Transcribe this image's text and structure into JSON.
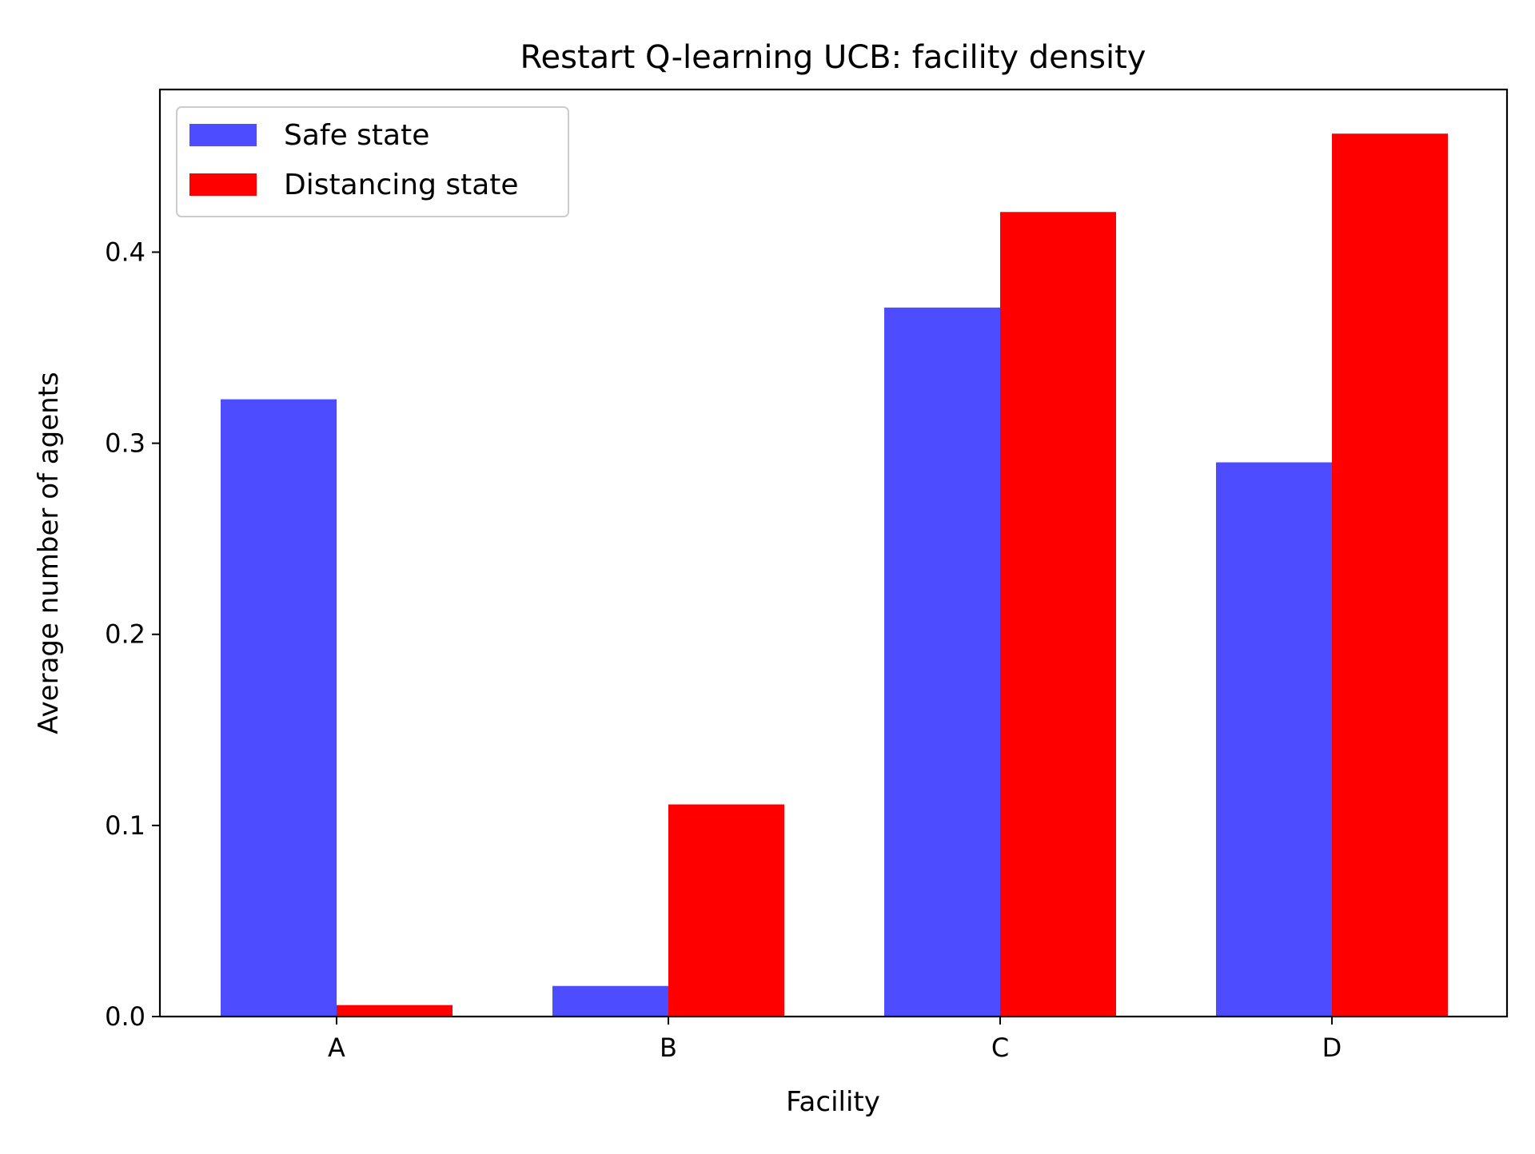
{
  "chart_data": {
    "type": "bar",
    "title": "Restart Q-learning UCB: facility density",
    "xlabel": "Facility",
    "ylabel": "Average number of agents",
    "categories": [
      "A",
      "B",
      "C",
      "D"
    ],
    "series": [
      {
        "name": "Safe state",
        "color": "#4d4dff",
        "values": [
          0.323,
          0.016,
          0.371,
          0.29
        ]
      },
      {
        "name": "Distancing state",
        "color": "#ff0000",
        "values": [
          0.006,
          0.111,
          0.421,
          0.462
        ]
      }
    ],
    "ylim": [
      0,
      0.4851
    ],
    "yticks": [
      0.0,
      0.1,
      0.2,
      0.3,
      0.4
    ],
    "ytick_labels": [
      "0.0",
      "0.1",
      "0.2",
      "0.3",
      "0.4"
    ],
    "grid": false,
    "legend_position": "upper-left"
  }
}
